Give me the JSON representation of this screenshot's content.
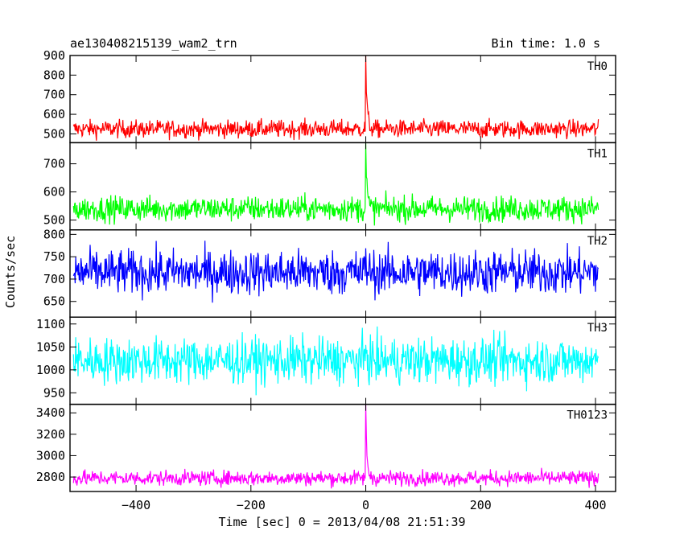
{
  "chart_data": {
    "type": "line",
    "title": "ae130408215139_wam2_trn",
    "bin_time": "Bin time: 1.0 s",
    "xlabel": "Time [sec] 0 = 2013/04/08 21:51:39",
    "ylabel": "Counts/sec",
    "xlim": [
      -515,
      435
    ],
    "x_ticks": [
      -400,
      -200,
      0,
      200,
      400
    ],
    "x_tick_labels": [
      "−400",
      "−200",
      "0",
      "200",
      "400"
    ],
    "x_data_range": [
      -509,
      405
    ],
    "burst_time": 0,
    "series": [
      {
        "name": "TH0",
        "color": "#ff0000",
        "ylim": [
          455,
          900
        ],
        "y_ticks": [
          500,
          600,
          700,
          800,
          900
        ],
        "baseline": 525,
        "noise_amplitude": 45,
        "burst_peak": 900
      },
      {
        "name": "TH1",
        "color": "#00ff00",
        "ylim": [
          465,
          775
        ],
        "y_ticks": [
          500,
          600,
          700
        ],
        "baseline": 540,
        "noise_amplitude": 45,
        "burst_peak": 765
      },
      {
        "name": "TH2",
        "color": "#0000ff",
        "ylim": [
          615,
          810
        ],
        "y_ticks": [
          650,
          700,
          750,
          800
        ],
        "baseline": 715,
        "noise_amplitude": 50,
        "burst_peak": 745
      },
      {
        "name": "TH3",
        "color": "#00ffff",
        "ylim": [
          925,
          1115
        ],
        "y_ticks": [
          950,
          1000,
          1050,
          1100
        ],
        "baseline": 1020,
        "noise_amplitude": 50,
        "burst_peak": 1060
      },
      {
        "name": "TH0123",
        "color": "#ff00ff",
        "ylim": [
          2665,
          3480
        ],
        "y_ticks": [
          2800,
          3000,
          3200,
          3400
        ],
        "baseline": 2790,
        "noise_amplitude": 70,
        "burst_peak": 3450
      }
    ]
  }
}
